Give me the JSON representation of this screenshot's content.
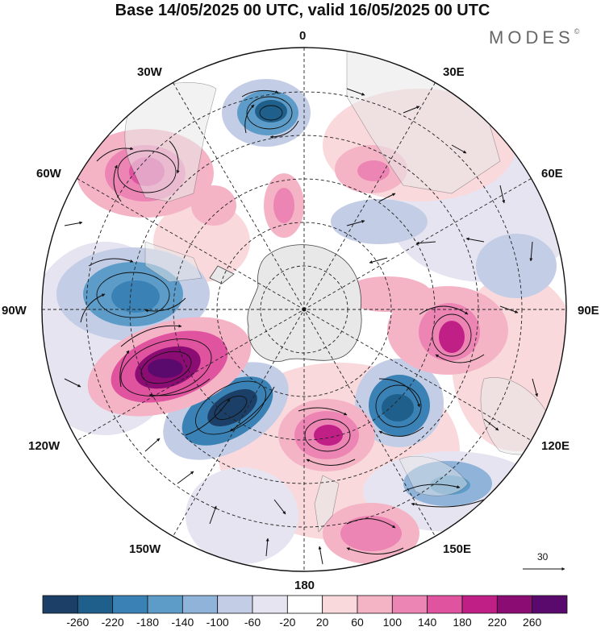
{
  "title": "Base 14/05/2025 00 UTC, valid 16/05/2025 00 UTC",
  "brand": "MODES",
  "brand_mark": "©",
  "longitude_labels": {
    "lon_0": "0",
    "lon_30e": "30E",
    "lon_60e": "60E",
    "lon_90e": "90E",
    "lon_120e": "120E",
    "lon_150e": "150E",
    "lon_180": "180",
    "lon_150w": "150W",
    "lon_120w": "120W",
    "lon_90w": "90W",
    "lon_60w": "60W",
    "lon_30w": "30W"
  },
  "reference_vector": "30",
  "colorbar": {
    "labels": [
      "-260",
      "-220",
      "-180",
      "-140",
      "-100",
      "-60",
      "-20",
      "20",
      "60",
      "100",
      "140",
      "180",
      "220",
      "260"
    ],
    "colors": [
      "#1b3f66",
      "#1f5f8b",
      "#3a82b5",
      "#5d9cc8",
      "#8fb3d9",
      "#c4cde6",
      "#e6e4f0",
      "#ffffff",
      "#f9d9dc",
      "#f4b4c6",
      "#ed85b4",
      "#e0539f",
      "#c01f86",
      "#8b0d73",
      "#5a0a6c"
    ]
  },
  "colors": {
    "land": "#e8e8e8",
    "border": "#444444",
    "grid": "#222222"
  }
}
